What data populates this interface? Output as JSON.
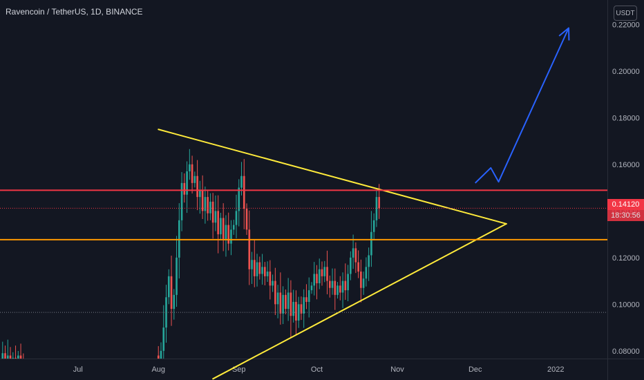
{
  "header": {
    "symbol_title": "Ravencoin / TetherUS, 1D, BINANCE",
    "currency": "USDT"
  },
  "last_price": {
    "price": "0.14120",
    "countdown": "18:30:56",
    "value": 0.1412,
    "color": "#f23645"
  },
  "colors": {
    "background": "#131722",
    "up_candle": "#26a69a",
    "down_candle": "#ef5350",
    "triangle_lines": "#ffeb3b",
    "resistance_line": "#f23645",
    "support_line": "#ff9800",
    "projection_arrow": "#2962ff"
  },
  "chart_data": {
    "type": "candlestick",
    "xlim": [
      "2021-06-01",
      "2022-02-04"
    ],
    "ylim": [
      0.0675,
      0.2305
    ],
    "y_ticks": [
      0.08,
      0.1,
      0.12,
      0.14,
      0.16,
      0.18,
      0.2,
      0.22
    ],
    "y_tick_labels": [
      "0.08000",
      "0.10000",
      "0.12000",
      "0.14000",
      "0.16000",
      "0.18000",
      "0.20000",
      "0.22000"
    ],
    "x_ticks": [
      {
        "label": "Jul",
        "date": "2021-07-01"
      },
      {
        "label": "Aug",
        "date": "2021-08-01"
      },
      {
        "label": "Sep",
        "date": "2021-09-01"
      },
      {
        "label": "Oct",
        "date": "2021-10-01"
      },
      {
        "label": "Nov",
        "date": "2021-11-01"
      },
      {
        "label": "Dec",
        "date": "2021-12-01"
      },
      {
        "label": "2022",
        "date": "2022-01-01"
      }
    ],
    "grid": false,
    "segments": [
      {
        "start": "2021-06-01",
        "prices": [
          0.073,
          0.079,
          0.076,
          0.078,
          0.072,
          0.077,
          0.075,
          0.078,
          0.074,
          0.068
        ]
      },
      {
        "start": "2021-07-31",
        "prices": [
          0.078,
          0.075,
          0.08,
          0.09,
          0.103,
          0.112,
          0.098,
          0.104,
          0.12,
          0.136,
          0.152,
          0.147,
          0.157,
          0.16,
          0.152,
          0.155,
          0.146,
          0.149,
          0.14,
          0.146,
          0.139,
          0.144,
          0.135,
          0.14,
          0.13,
          0.137,
          0.128,
          0.134,
          0.126,
          0.132,
          0.134,
          0.14,
          0.15,
          0.155,
          0.141,
          0.132,
          0.115,
          0.119,
          0.112,
          0.118,
          0.113,
          0.116,
          0.112,
          0.114,
          0.108,
          0.11,
          0.1,
          0.105,
          0.096,
          0.104,
          0.098,
          0.105,
          0.095,
          0.101,
          0.093,
          0.1,
          0.096,
          0.103,
          0.101,
          0.106,
          0.108,
          0.113,
          0.109,
          0.115,
          0.112,
          0.116,
          0.11,
          0.107,
          0.11,
          0.104,
          0.108,
          0.105,
          0.11,
          0.106,
          0.113,
          0.12,
          0.124,
          0.118,
          0.114,
          0.107,
          0.111,
          0.116,
          0.121,
          0.131,
          0.136,
          0.146,
          0.1412
        ]
      }
    ],
    "drawings": [
      {
        "type": "trendline",
        "label": "upper-triangle-line",
        "color": "#ffeb3b",
        "points": [
          [
            "2021-08-01",
            0.175
          ],
          [
            "2021-12-13",
            0.1345
          ]
        ]
      },
      {
        "type": "trendline",
        "label": "lower-triangle-line",
        "color": "#ffeb3b",
        "points": [
          [
            "2021-08-22",
            0.068
          ],
          [
            "2021-12-13",
            0.1345
          ]
        ]
      },
      {
        "type": "horizontal-line",
        "label": "resistance-line",
        "color": "#f23645",
        "y": 0.1489
      },
      {
        "type": "horizontal-line",
        "label": "support-line",
        "color": "#ff9800",
        "y": 0.1277
      },
      {
        "type": "horizontal-line",
        "label": "current-price-line",
        "color": "#f23645",
        "y": 0.1412,
        "style": "dotted"
      },
      {
        "type": "horizontal-line",
        "label": "reference-dotted-line",
        "color": "#787b86",
        "y": 0.0965,
        "style": "dotted"
      },
      {
        "type": "arrow-path",
        "label": "projection-arrow",
        "color": "#2962ff",
        "points": [
          [
            "2021-12-01",
            0.152
          ],
          [
            "2021-12-07",
            0.1585
          ],
          [
            "2021-12-10",
            0.1525
          ],
          [
            "2022-01-06",
            0.2185
          ]
        ]
      }
    ]
  }
}
